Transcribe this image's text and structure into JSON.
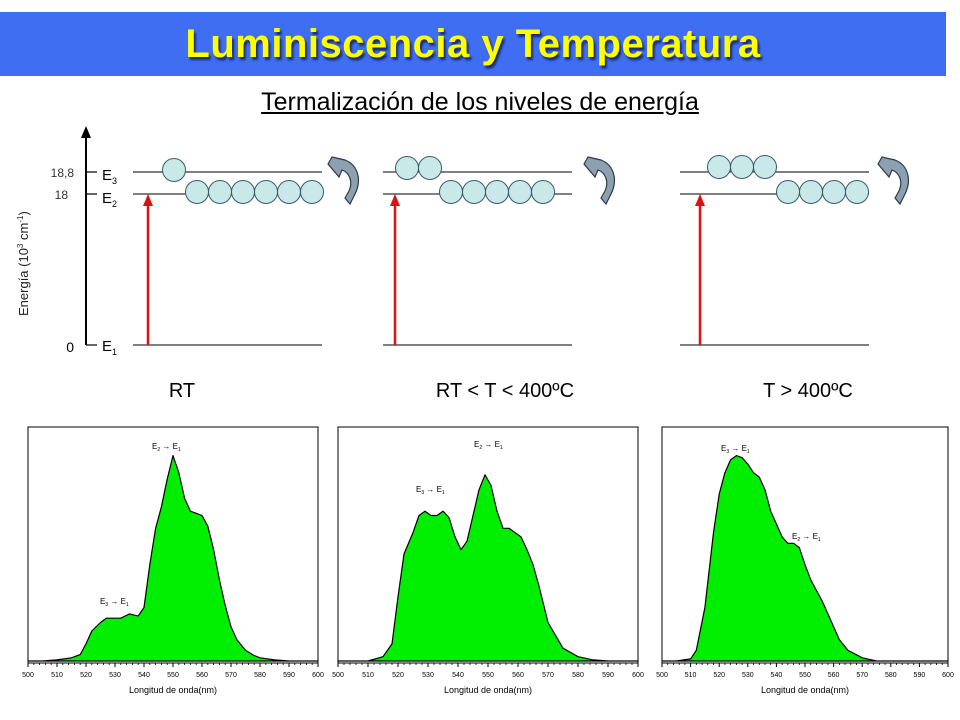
{
  "title": "Luminiscencia y Temperatura",
  "subtitle": "Termalización de los niveles de energía",
  "energy_axis": {
    "label_main": "Energía (10",
    "label_exp1": "3",
    "label_mid": " cm",
    "label_exp2": "-1",
    "label_end": ")",
    "ticks": [
      "18,8",
      "18",
      "0"
    ],
    "levels": [
      {
        "letter": "E",
        "sub": "3"
      },
      {
        "letter": "E",
        "sub": "2"
      },
      {
        "letter": "E",
        "sub": "1"
      }
    ]
  },
  "panels": [
    {
      "caption": "RT",
      "e3_count": 1,
      "e2_count": 6
    },
    {
      "caption": "RT < T < 400ºC",
      "e3_count": 2,
      "e2_count": 5
    },
    {
      "caption": "T > 400ºC",
      "e3_count": 3,
      "e2_count": 4
    }
  ],
  "colors": {
    "banner": "#3f6ef3",
    "title": "#ffff00",
    "arrow": "#dd1111",
    "ion": "#c9e8e8",
    "curved_arrow": "#8ca0b0",
    "spectrum": "#00ee00"
  },
  "chart_data": [
    {
      "type": "area",
      "xlabel": "Longitud de onda(nm)",
      "xlim": [
        500,
        600
      ],
      "x_ticks": [
        "500",
        "510",
        "520",
        "530",
        "540",
        "550",
        "560",
        "570",
        "580",
        "590",
        "600"
      ],
      "x": [
        500,
        505,
        510,
        515,
        518,
        520,
        522,
        525,
        527,
        530,
        532,
        535,
        538,
        540,
        542,
        544,
        546,
        548,
        550,
        552,
        554,
        556,
        558,
        560,
        562,
        564,
        566,
        568,
        570,
        572,
        575,
        578,
        580,
        585,
        590,
        600
      ],
      "y": [
        0,
        0,
        0.5,
        1.5,
        3,
        8,
        14,
        18,
        20,
        20,
        20,
        22,
        21,
        25,
        45,
        62,
        72,
        85,
        96,
        88,
        76,
        70,
        69,
        68,
        63,
        52,
        38,
        26,
        16,
        10,
        5,
        2.5,
        1.5,
        0.5,
        0,
        0
      ],
      "annotations": [
        {
          "label": "E",
          "sub": "2",
          "arrow": "→",
          "label2": "E",
          "sub2": "1"
        },
        {
          "label": "E",
          "sub": "3",
          "arrow": "→",
          "label2": "E",
          "sub2": "1"
        }
      ]
    },
    {
      "type": "area",
      "xlabel": "Longitud de onda(nm)",
      "xlim": [
        500,
        600
      ],
      "x_ticks": [
        "500",
        "510",
        "520",
        "530",
        "540",
        "550",
        "560",
        "570",
        "580",
        "590",
        "600"
      ],
      "x": [
        500,
        510,
        515,
        518,
        520,
        522,
        525,
        527,
        529,
        531,
        533,
        535,
        537,
        539,
        541,
        543,
        545,
        547,
        549,
        551,
        553,
        555,
        557,
        559,
        561,
        563,
        565,
        567,
        570,
        575,
        580,
        585,
        590,
        600
      ],
      "y": [
        0,
        0,
        2,
        8,
        30,
        50,
        60,
        68,
        70,
        68,
        68,
        70,
        67,
        58,
        52,
        56,
        68,
        80,
        87,
        82,
        70,
        62,
        62,
        60,
        58,
        52,
        45,
        35,
        18,
        6,
        2,
        0.5,
        0,
        0
      ],
      "annotations": [
        {
          "label": "E",
          "sub": "2",
          "arrow": "→",
          "label2": "E",
          "sub2": "1"
        },
        {
          "label": "E",
          "sub": "3",
          "arrow": "→",
          "label2": "E",
          "sub2": "1"
        }
      ]
    },
    {
      "type": "area",
      "xlabel": "Longitud de onda(nm)",
      "xlim": [
        500,
        600
      ],
      "x_ticks": [
        "500",
        "510",
        "520",
        "530",
        "540",
        "550",
        "560",
        "570",
        "580",
        "590",
        "600"
      ],
      "x": [
        500,
        505,
        510,
        512,
        515,
        518,
        520,
        522,
        524,
        526,
        528,
        530,
        532,
        534,
        536,
        538,
        540,
        542,
        544,
        546,
        548,
        550,
        552,
        554,
        556,
        558,
        560,
        562,
        565,
        570,
        575,
        580,
        600
      ],
      "y": [
        0,
        0,
        1,
        5,
        25,
        60,
        78,
        88,
        94,
        96,
        95,
        92,
        88,
        86,
        80,
        70,
        64,
        58,
        55,
        55,
        53,
        45,
        38,
        33,
        28,
        22,
        16,
        10,
        5,
        1.5,
        0,
        0,
        0
      ],
      "annotations": [
        {
          "label": "E",
          "sub": "3",
          "arrow": "→",
          "label2": "E",
          "sub2": "1"
        },
        {
          "label": "E",
          "sub": "2",
          "arrow": "→",
          "label2": "E",
          "sub2": "1"
        }
      ]
    }
  ]
}
